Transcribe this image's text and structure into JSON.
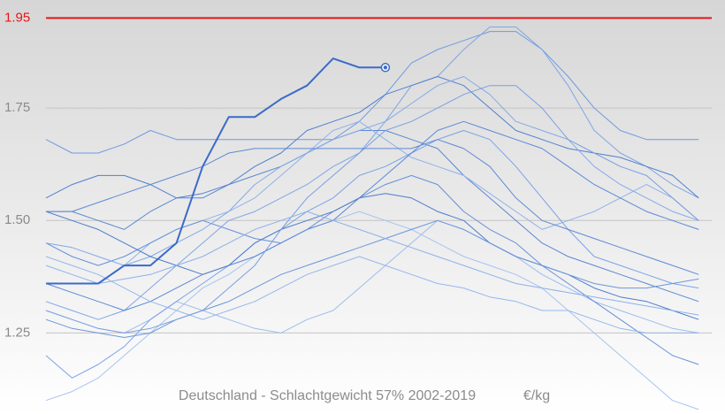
{
  "chart_data": {
    "type": "line",
    "title": "Deutschland - Schlachtgewicht 57% 2002-2019",
    "unit": "€/kg",
    "x": [
      1,
      3,
      5,
      7,
      9,
      11,
      13,
      15,
      17,
      19,
      21,
      23,
      25,
      27,
      29,
      31,
      33,
      35,
      37,
      39,
      41,
      43,
      45,
      47,
      49,
      51
    ],
    "xlim": [
      1,
      52
    ],
    "ylim": [
      1.07,
      1.99
    ],
    "yticks": [
      1.25,
      {
        "value": 1.5,
        "label": "1.50"
      },
      1.75
    ],
    "grid": true,
    "reference_line": 1.95,
    "reference_color": "#e8141a",
    "series": [
      {
        "color": "#6f9ae0",
        "width": 1,
        "values": [
          1.68,
          1.65,
          1.65,
          1.67,
          1.7,
          1.68,
          1.68,
          1.68,
          1.68,
          1.68,
          1.68,
          1.68,
          1.72,
          1.78,
          1.85,
          1.88,
          1.9,
          1.92,
          1.92,
          1.88,
          1.82,
          1.75,
          1.7,
          1.68,
          1.68,
          1.68
        ]
      },
      {
        "color": "#7fa6e4",
        "width": 1,
        "values": [
          1.32,
          1.3,
          1.28,
          1.3,
          1.35,
          1.4,
          1.45,
          1.5,
          1.52,
          1.55,
          1.58,
          1.62,
          1.65,
          1.72,
          1.8,
          1.82,
          1.88,
          1.93,
          1.93,
          1.88,
          1.8,
          1.7,
          1.65,
          1.62,
          1.58,
          1.55
        ]
      },
      {
        "color": "#5b87d2",
        "width": 1,
        "values": [
          1.52,
          1.52,
          1.5,
          1.48,
          1.52,
          1.55,
          1.55,
          1.58,
          1.6,
          1.62,
          1.65,
          1.68,
          1.7,
          1.7,
          1.68,
          1.66,
          1.6,
          1.55,
          1.5,
          1.45,
          1.42,
          1.4,
          1.38,
          1.36,
          1.34,
          1.32
        ]
      },
      {
        "color": "#8fb2ea",
        "width": 1,
        "values": [
          1.4,
          1.38,
          1.36,
          1.4,
          1.45,
          1.48,
          1.5,
          1.52,
          1.55,
          1.6,
          1.65,
          1.7,
          1.72,
          1.68,
          1.64,
          1.62,
          1.6,
          1.56,
          1.52,
          1.48,
          1.5,
          1.52,
          1.55,
          1.58,
          1.55,
          1.5
        ]
      },
      {
        "color": "#4f7fd0",
        "width": 1,
        "values": [
          1.55,
          1.58,
          1.6,
          1.6,
          1.58,
          1.55,
          1.56,
          1.58,
          1.62,
          1.65,
          1.7,
          1.72,
          1.74,
          1.78,
          1.8,
          1.82,
          1.8,
          1.75,
          1.7,
          1.68,
          1.66,
          1.65,
          1.64,
          1.62,
          1.6,
          1.55
        ]
      },
      {
        "color": "#9dbcee",
        "width": 1,
        "values": [
          1.3,
          1.28,
          1.26,
          1.25,
          1.28,
          1.32,
          1.3,
          1.28,
          1.26,
          1.25,
          1.28,
          1.3,
          1.35,
          1.4,
          1.45,
          1.5,
          1.48,
          1.45,
          1.42,
          1.38,
          1.35,
          1.32,
          1.3,
          1.28,
          1.26,
          1.25
        ]
      },
      {
        "color": "#7aa3e6",
        "width": 1,
        "values": [
          1.2,
          1.15,
          1.18,
          1.22,
          1.28,
          1.32,
          1.36,
          1.4,
          1.45,
          1.48,
          1.52,
          1.55,
          1.6,
          1.62,
          1.65,
          1.68,
          1.7,
          1.68,
          1.62,
          1.55,
          1.48,
          1.42,
          1.4,
          1.38,
          1.36,
          1.35
        ]
      },
      {
        "color": "#6690d8",
        "width": 1,
        "values": [
          1.45,
          1.42,
          1.4,
          1.42,
          1.45,
          1.48,
          1.5,
          1.48,
          1.46,
          1.45,
          1.48,
          1.52,
          1.55,
          1.58,
          1.6,
          1.58,
          1.52,
          1.48,
          1.45,
          1.4,
          1.36,
          1.32,
          1.28,
          1.24,
          1.2,
          1.18
        ]
      },
      {
        "color": "#a7c3f0",
        "width": 1,
        "values": [
          1.1,
          1.12,
          1.15,
          1.2,
          1.25,
          1.3,
          1.35,
          1.38,
          1.42,
          1.45,
          1.48,
          1.5,
          1.52,
          1.5,
          1.48,
          1.45,
          1.42,
          1.4,
          1.38,
          1.35,
          1.3,
          1.25,
          1.2,
          1.15,
          1.1,
          1.08
        ]
      },
      {
        "color": "#5a88d6",
        "width": 1,
        "values": [
          1.36,
          1.34,
          1.32,
          1.3,
          1.32,
          1.35,
          1.38,
          1.4,
          1.42,
          1.45,
          1.48,
          1.5,
          1.55,
          1.6,
          1.65,
          1.7,
          1.72,
          1.7,
          1.68,
          1.66,
          1.62,
          1.58,
          1.55,
          1.52,
          1.5,
          1.48
        ]
      },
      {
        "color": "#83aae8",
        "width": 1,
        "values": [
          1.45,
          1.44,
          1.42,
          1.4,
          1.42,
          1.45,
          1.48,
          1.52,
          1.58,
          1.62,
          1.65,
          1.68,
          1.7,
          1.72,
          1.76,
          1.8,
          1.82,
          1.78,
          1.72,
          1.7,
          1.68,
          1.62,
          1.58,
          1.55,
          1.52,
          1.5
        ]
      },
      {
        "color": "#4c7ccc",
        "width": 1,
        "values": [
          1.52,
          1.5,
          1.48,
          1.45,
          1.42,
          1.4,
          1.38,
          1.4,
          1.45,
          1.48,
          1.5,
          1.52,
          1.55,
          1.56,
          1.55,
          1.52,
          1.5,
          1.45,
          1.42,
          1.4,
          1.38,
          1.35,
          1.33,
          1.32,
          1.3,
          1.28
        ]
      },
      {
        "color": "#95b7ec",
        "width": 1,
        "values": [
          1.42,
          1.4,
          1.38,
          1.35,
          1.32,
          1.3,
          1.28,
          1.3,
          1.32,
          1.35,
          1.38,
          1.4,
          1.42,
          1.4,
          1.38,
          1.36,
          1.35,
          1.33,
          1.32,
          1.3,
          1.3,
          1.28,
          1.26,
          1.25,
          1.25,
          1.25
        ]
      },
      {
        "color": "#6b96dc",
        "width": 1,
        "values": [
          1.28,
          1.26,
          1.25,
          1.24,
          1.25,
          1.28,
          1.3,
          1.32,
          1.35,
          1.38,
          1.4,
          1.42,
          1.44,
          1.46,
          1.48,
          1.5,
          1.48,
          1.45,
          1.42,
          1.4,
          1.38,
          1.36,
          1.35,
          1.35,
          1.36,
          1.37
        ]
      },
      {
        "color": "#789fe2",
        "width": 1,
        "values": [
          1.3,
          1.28,
          1.26,
          1.25,
          1.26,
          1.28,
          1.3,
          1.35,
          1.4,
          1.48,
          1.55,
          1.6,
          1.65,
          1.7,
          1.72,
          1.75,
          1.78,
          1.8,
          1.8,
          1.75,
          1.68,
          1.65,
          1.62,
          1.6,
          1.55,
          1.5
        ]
      },
      {
        "color": "#5e8ad4",
        "width": 1,
        "values": [
          1.52,
          1.52,
          1.54,
          1.56,
          1.58,
          1.6,
          1.62,
          1.65,
          1.66,
          1.66,
          1.66,
          1.66,
          1.66,
          1.66,
          1.66,
          1.68,
          1.66,
          1.62,
          1.55,
          1.5,
          1.48,
          1.46,
          1.44,
          1.42,
          1.4,
          1.38
        ]
      },
      {
        "color": "#8cb0ea",
        "width": 1,
        "values": [
          1.36,
          1.36,
          1.36,
          1.37,
          1.38,
          1.4,
          1.42,
          1.45,
          1.48,
          1.5,
          1.52,
          1.5,
          1.48,
          1.46,
          1.44,
          1.42,
          1.4,
          1.38,
          1.36,
          1.35,
          1.34,
          1.33,
          1.32,
          1.31,
          1.3,
          1.29
        ]
      },
      {
        "color": "#3a6bc8",
        "width": 2,
        "marker_end": true,
        "values": [
          1.36,
          1.36,
          1.36,
          1.4,
          1.4,
          1.45,
          1.62,
          1.73,
          1.73,
          1.77,
          1.8,
          1.86,
          1.84,
          1.84,
          null,
          null,
          null,
          null,
          null,
          null,
          null,
          null,
          null,
          null,
          null,
          null
        ]
      }
    ]
  }
}
